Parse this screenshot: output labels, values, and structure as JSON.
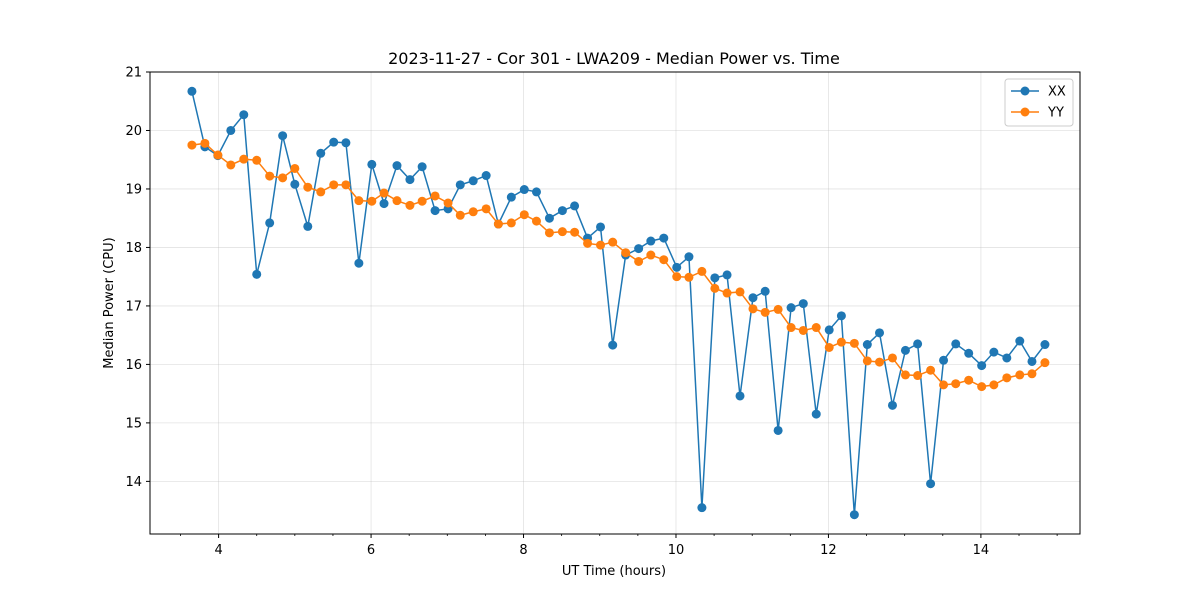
{
  "chart_data": {
    "type": "line",
    "title": "2023-11-27 - Cor 301 - LWA209 - Median Power vs. Time",
    "xlabel": "UT Time (hours)",
    "ylabel": "Median Power (CPU)",
    "xlim": [
      3.1,
      15.3
    ],
    "ylim": [
      13.1,
      21.0
    ],
    "xticks": [
      4,
      6,
      8,
      10,
      12,
      14
    ],
    "xminor_step": 0.5,
    "yticks": [
      14,
      15,
      16,
      17,
      18,
      19,
      20,
      21
    ],
    "grid": true,
    "legend_position": "top-right",
    "x": [
      3.65,
      3.82,
      3.99,
      4.16,
      4.33,
      4.5,
      4.67,
      4.84,
      5.0,
      5.17,
      5.34,
      5.51,
      5.67,
      5.84,
      6.01,
      6.17,
      6.34,
      6.51,
      6.67,
      6.84,
      7.01,
      7.17,
      7.34,
      7.51,
      7.67,
      7.84,
      8.01,
      8.17,
      8.34,
      8.51,
      8.67,
      8.84,
      9.01,
      9.17,
      9.34,
      9.51,
      9.67,
      9.84,
      10.01,
      10.17,
      10.34,
      10.51,
      10.67,
      10.84,
      11.01,
      11.17,
      11.34,
      11.51,
      11.67,
      11.84,
      12.01,
      12.17,
      12.34,
      12.51,
      12.67,
      12.84,
      13.01,
      13.17,
      13.34,
      13.51,
      13.67,
      13.84,
      14.01,
      14.17,
      14.34,
      14.51,
      14.67,
      14.84
    ],
    "series": [
      {
        "name": "XX",
        "color": "#1f77b4",
        "values": [
          20.67,
          19.72,
          19.57,
          20.0,
          20.27,
          17.54,
          18.42,
          19.91,
          19.08,
          18.36,
          19.61,
          19.8,
          19.79,
          17.73,
          19.42,
          18.75,
          19.4,
          19.16,
          19.38,
          18.63,
          18.66,
          19.07,
          19.14,
          19.23,
          18.4,
          18.86,
          18.99,
          18.95,
          18.5,
          18.63,
          18.71,
          18.16,
          18.35,
          16.33,
          17.87,
          17.98,
          18.11,
          18.16,
          17.66,
          17.84,
          13.55,
          17.48,
          17.53,
          15.46,
          17.14,
          17.25,
          14.87,
          16.97,
          17.04,
          15.15,
          16.59,
          16.83,
          13.43,
          16.34,
          16.54,
          15.3,
          16.24,
          16.35,
          13.96,
          16.07,
          16.35,
          16.19,
          15.98,
          16.21,
          16.11,
          16.4,
          16.05,
          16.34
        ]
      },
      {
        "name": "YY",
        "color": "#ff7f0e",
        "values": [
          19.75,
          19.78,
          19.58,
          19.41,
          19.51,
          19.49,
          19.22,
          19.19,
          19.35,
          19.03,
          18.95,
          19.07,
          19.07,
          18.8,
          18.79,
          18.93,
          18.8,
          18.72,
          18.79,
          18.88,
          18.76,
          18.55,
          18.61,
          18.66,
          18.4,
          18.42,
          18.56,
          18.45,
          18.25,
          18.27,
          18.26,
          18.07,
          18.04,
          18.09,
          17.91,
          17.76,
          17.87,
          17.79,
          17.5,
          17.49,
          17.59,
          17.3,
          17.22,
          17.24,
          16.95,
          16.89,
          16.94,
          16.63,
          16.58,
          16.63,
          16.29,
          16.38,
          16.36,
          16.06,
          16.04,
          16.11,
          15.82,
          15.81,
          15.9,
          15.65,
          15.67,
          15.73,
          15.62,
          15.65,
          15.77,
          15.82,
          15.84,
          16.03
        ]
      }
    ]
  }
}
